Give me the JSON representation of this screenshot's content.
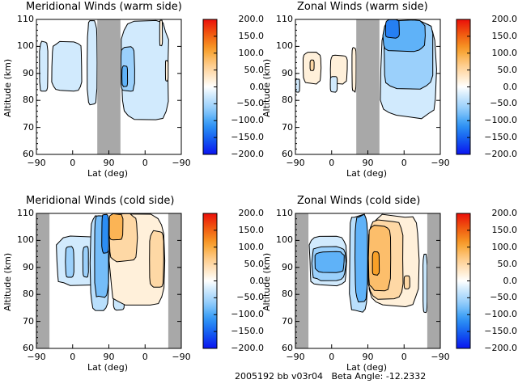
{
  "chart_data": [
    {
      "type": "heatmap",
      "title": "Meridional Winds (warm side)",
      "xlabel": "Lat (deg)",
      "ylabel": "Altitude (km)",
      "xticks": [
        "-90",
        "0",
        "90",
        "0",
        "-90"
      ],
      "yticks": [
        "60",
        "70",
        "80",
        "90",
        "100",
        "110"
      ],
      "ylim": [
        60,
        110
      ],
      "colorbar": {
        "ticks": [
          "200.0",
          "150.0",
          "100.0",
          "50.0",
          "0.0",
          "-50.0",
          "-100.0",
          "-150.0",
          "-200.0"
        ],
        "range": [
          -200,
          200
        ]
      },
      "no_data_regions": [
        {
          "lat_path_fraction": [
            0.42,
            0.58
          ]
        }
      ],
      "features": [
        {
          "kind": "negative",
          "x": [
            0.02,
            0.08
          ],
          "y": [
            83,
            102
          ],
          "level": -25
        },
        {
          "kind": "negative",
          "x": [
            0.1,
            0.32
          ],
          "y": [
            83,
            102
          ],
          "level": -25
        },
        {
          "kind": "negative",
          "x": [
            0.35,
            0.42
          ],
          "y": [
            78,
            110
          ],
          "level": -25
        },
        {
          "kind": "negative",
          "x": [
            0.58,
            0.92
          ],
          "y": [
            72,
            110
          ],
          "level": -25
        },
        {
          "kind": "negative",
          "x": [
            0.58,
            0.68
          ],
          "y": [
            83,
            100
          ],
          "level": -60
        },
        {
          "kind": "negative",
          "x": [
            0.59,
            0.63
          ],
          "y": [
            85,
            93
          ],
          "level": -90
        },
        {
          "kind": "positive",
          "x": [
            0.89,
            0.91
          ],
          "y": [
            87,
            95
          ],
          "level": 20
        },
        {
          "kind": "positive",
          "x": [
            0.85,
            0.87
          ],
          "y": [
            100,
            110
          ],
          "level": 20
        }
      ]
    },
    {
      "type": "heatmap",
      "title": "Zonal Winds (warm side)",
      "xlabel": "Lat (deg)",
      "ylabel": "Altitude (km)",
      "xticks": [
        "-90",
        "0",
        "90",
        "0",
        "-90"
      ],
      "yticks": [
        "60",
        "70",
        "80",
        "90",
        "100",
        "110"
      ],
      "ylim": [
        60,
        110
      ],
      "colorbar": {
        "ticks": [
          "200.0",
          "150.0",
          "100.0",
          "50.0",
          "0.0",
          "-50.0",
          "-100.0",
          "-150.0",
          "-200.0"
        ],
        "range": [
          -200,
          200
        ]
      },
      "no_data_regions": [
        {
          "lat_path_fraction": [
            0.42,
            0.58
          ]
        }
      ],
      "features": [
        {
          "kind": "positive",
          "x": [
            0.05,
            0.18
          ],
          "y": [
            86,
            98
          ],
          "level": 20
        },
        {
          "kind": "positive",
          "x": [
            0.1,
            0.13
          ],
          "y": [
            91,
            95
          ],
          "level": 50
        },
        {
          "kind": "positive",
          "x": [
            0.24,
            0.36
          ],
          "y": [
            86,
            97
          ],
          "level": 20
        },
        {
          "kind": "positive",
          "x": [
            0.39,
            0.42
          ],
          "y": [
            83,
            100
          ],
          "level": 20
        },
        {
          "kind": "negative",
          "x": [
            0.0,
            0.03
          ],
          "y": [
            83,
            88
          ],
          "level": -25
        },
        {
          "kind": "negative",
          "x": [
            0.24,
            0.29
          ],
          "y": [
            83,
            89
          ],
          "level": -25
        },
        {
          "kind": "negative",
          "x": [
            0.58,
            0.98
          ],
          "y": [
            73,
            110
          ],
          "level": -25
        },
        {
          "kind": "negative",
          "x": [
            0.6,
            0.96
          ],
          "y": [
            84,
            110
          ],
          "level": -60
        },
        {
          "kind": "negative",
          "x": [
            0.6,
            0.9
          ],
          "y": [
            98,
            110
          ],
          "level": -90
        },
        {
          "kind": "negative",
          "x": [
            0.62,
            0.72
          ],
          "y": [
            103,
            110
          ],
          "level": -130
        }
      ]
    },
    {
      "type": "heatmap",
      "title": "Meridional Winds (cold side)",
      "xlabel": "Lat (deg)",
      "ylabel": "Altitude (km)",
      "xticks": [
        "-90",
        "0",
        "90",
        "0",
        "-90"
      ],
      "yticks": [
        "60",
        "70",
        "80",
        "90",
        "100",
        "110"
      ],
      "ylim": [
        60,
        110
      ],
      "colorbar": {
        "ticks": [
          "200.0",
          "150.0",
          "100.0",
          "50.0",
          "0.0",
          "-50.0",
          "-100.0",
          "-150.0",
          "-200.0"
        ],
        "range": [
          -200,
          200
        ]
      },
      "no_data_regions": [
        {
          "lat_path_fraction": [
            0.0,
            0.09
          ]
        },
        {
          "lat_path_fraction": [
            0.91,
            1.0
          ]
        }
      ],
      "features": [
        {
          "kind": "negative",
          "x": [
            0.13,
            0.5
          ],
          "y": [
            83,
            102
          ],
          "level": -25
        },
        {
          "kind": "negative",
          "x": [
            0.37,
            0.5
          ],
          "y": [
            73,
            110
          ],
          "level": -40
        },
        {
          "kind": "negative",
          "x": [
            0.4,
            0.5
          ],
          "y": [
            78,
            110
          ],
          "level": -80
        },
        {
          "kind": "negative",
          "x": [
            0.45,
            0.5
          ],
          "y": [
            95,
            110
          ],
          "level": -120
        },
        {
          "kind": "negative",
          "x": [
            0.2,
            0.26
          ],
          "y": [
            86,
            98
          ],
          "level": -60
        },
        {
          "kind": "negative",
          "x": [
            0.32,
            0.36
          ],
          "y": [
            86,
            98
          ],
          "level": -60
        },
        {
          "kind": "negative",
          "x": [
            0.53,
            0.61
          ],
          "y": [
            74,
            84
          ],
          "level": -30
        },
        {
          "kind": "positive",
          "x": [
            0.5,
            0.9
          ],
          "y": [
            75,
            110
          ],
          "level": 20
        },
        {
          "kind": "positive",
          "x": [
            0.5,
            0.7
          ],
          "y": [
            92,
            110
          ],
          "level": 50
        },
        {
          "kind": "positive",
          "x": [
            0.5,
            0.6
          ],
          "y": [
            100,
            110
          ],
          "level": 90
        },
        {
          "kind": "positive",
          "x": [
            0.78,
            0.88
          ],
          "y": [
            82,
            104
          ],
          "level": 50
        }
      ]
    },
    {
      "type": "heatmap",
      "title": "Zonal Winds (cold side)",
      "xlabel": "Lat (deg)",
      "ylabel": "Altitude (km)",
      "xticks": [
        "-90",
        "0",
        "90",
        "0",
        "-90"
      ],
      "yticks": [
        "60",
        "70",
        "80",
        "90",
        "100",
        "110"
      ],
      "ylim": [
        60,
        110
      ],
      "colorbar": {
        "ticks": [
          "200.0",
          "150.0",
          "100.0",
          "50.0",
          "0.0",
          "-50.0",
          "-100.0",
          "-150.0",
          "-200.0"
        ],
        "range": [
          -200,
          200
        ]
      },
      "no_data_regions": [
        {
          "lat_path_fraction": [
            0.0,
            0.09
          ]
        },
        {
          "lat_path_fraction": [
            0.91,
            1.0
          ]
        }
      ],
      "features": [
        {
          "kind": "negative",
          "x": [
            0.09,
            0.36
          ],
          "y": [
            83,
            102
          ],
          "level": -25
        },
        {
          "kind": "negative",
          "x": [
            0.11,
            0.35
          ],
          "y": [
            85,
            98
          ],
          "level": -60
        },
        {
          "kind": "negative",
          "x": [
            0.13,
            0.34
          ],
          "y": [
            88,
            96
          ],
          "level": -90
        },
        {
          "kind": "negative",
          "x": [
            0.37,
            0.5
          ],
          "y": [
            73,
            110
          ],
          "level": -40
        },
        {
          "kind": "negative",
          "x": [
            0.41,
            0.5
          ],
          "y": [
            77,
            110
          ],
          "level": -90
        },
        {
          "kind": "negative",
          "x": [
            0.88,
            0.91
          ],
          "y": [
            73,
            95
          ],
          "level": -30
        },
        {
          "kind": "positive",
          "x": [
            0.5,
            0.86
          ],
          "y": [
            75,
            110
          ],
          "level": 20
        },
        {
          "kind": "positive",
          "x": [
            0.5,
            0.75
          ],
          "y": [
            78,
            108
          ],
          "level": 50
        },
        {
          "kind": "positive",
          "x": [
            0.5,
            0.66
          ],
          "y": [
            81,
            106
          ],
          "level": 80
        },
        {
          "kind": "positive",
          "x": [
            0.53,
            0.58
          ],
          "y": [
            87,
            96
          ],
          "level": 110
        },
        {
          "kind": "positive",
          "x": [
            0.75,
            0.79
          ],
          "y": [
            82,
            87
          ],
          "level": 50
        }
      ]
    }
  ],
  "footer": {
    "text": "2005192 bb v03r04   Beta Angle: -12.2332"
  }
}
